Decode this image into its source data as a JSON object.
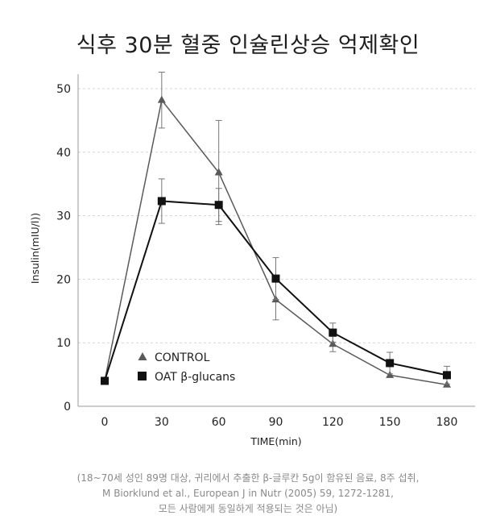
{
  "title": "식후 30분 혈중 인슐린상승 억제확인",
  "caption": [
    "(18~70세 성인 89명 대상, 귀리에서 추출한 β-글루칸 5g이 함유된 음료, 8주 섭취,",
    "M Biorklund et al., European J in Nutr (2005) 59, 1272-1281,",
    "모든 사람에게 동일하게 적용되는 것은 아님)"
  ],
  "chart_data": {
    "type": "line",
    "title": "식후 30분 혈중 인슐린상승 억제확인",
    "xlabel": "TIME(min)",
    "ylabel": "Insulin(mIU/l))",
    "x": [
      0,
      30,
      60,
      90,
      120,
      150,
      180
    ],
    "xlim": [
      0,
      180
    ],
    "ylim": [
      0,
      50
    ],
    "yticks": [
      0,
      10,
      20,
      30,
      40,
      50
    ],
    "grid": true,
    "legend_position": "lower-left",
    "series": [
      {
        "name": "CONTROL",
        "marker": "triangle",
        "color": "#5a5a5a",
        "values": [
          4.0,
          48.2,
          36.8,
          16.8,
          9.8,
          4.9,
          3.4
        ],
        "error": [
          0,
          4.4,
          8.2,
          3.2,
          1.2,
          0,
          0
        ]
      },
      {
        "name": "OAT β-glucans",
        "marker": "square",
        "color": "#111111",
        "values": [
          4.0,
          32.3,
          31.7,
          20.1,
          11.6,
          6.8,
          4.9
        ],
        "error": [
          0,
          3.5,
          2.6,
          3.3,
          1.5,
          1.7,
          1.4
        ]
      }
    ]
  }
}
